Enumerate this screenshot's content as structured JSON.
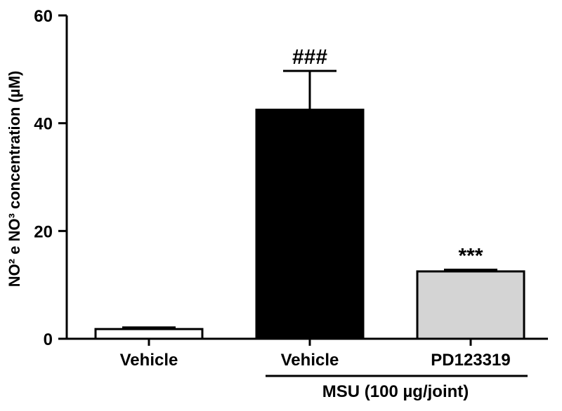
{
  "chart_data": {
    "type": "bar",
    "title": "",
    "xlabel": "",
    "ylabel": "NO² e NO³ concentration (µM)",
    "ylim": [
      0,
      60
    ],
    "yticks": [
      0,
      20,
      40,
      60
    ],
    "ytick_labels": [
      "0",
      "20",
      "40",
      "60"
    ],
    "categories": [
      "Vehicle",
      "Vehicle",
      "PD123319"
    ],
    "values": [
      1.8,
      42.5,
      12.5
    ],
    "errors": [
      0.3,
      7.2,
      0.3
    ],
    "bar_colors": [
      "#ffffff",
      "#000000",
      "#d4d4d4"
    ],
    "annotations": [
      "",
      "###",
      "***"
    ],
    "group": {
      "label": "MSU (100 µg/joint)",
      "categories": [
        1,
        2
      ]
    },
    "grid": false,
    "legend": "none"
  }
}
